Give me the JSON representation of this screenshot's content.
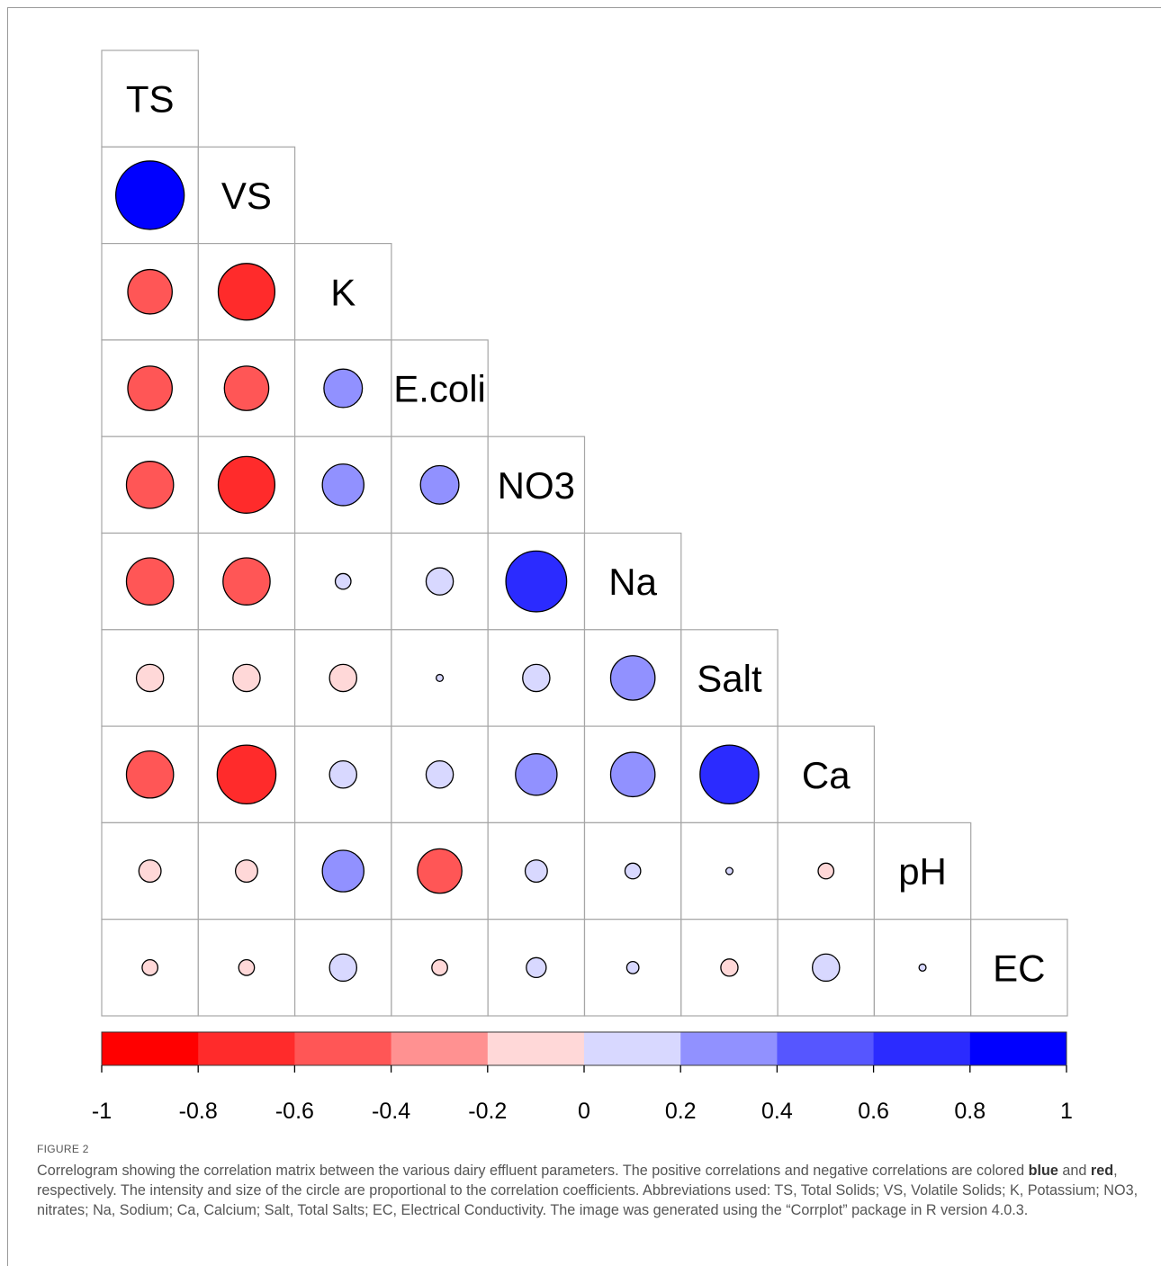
{
  "chart_data": {
    "type": "heatmap",
    "variables": [
      "TS",
      "VS",
      "K",
      "E.coli",
      "NO3",
      "Na",
      "Salt",
      "Ca",
      "pH",
      "EC"
    ],
    "layout": "lower-triangle",
    "method": "circle",
    "matrix": [
      [
        1,
        null,
        null,
        null,
        null,
        null,
        null,
        null,
        null,
        null
      ],
      [
        0.95,
        1,
        null,
        null,
        null,
        null,
        null,
        null,
        null,
        null
      ],
      [
        -0.4,
        -0.65,
        1,
        null,
        null,
        null,
        null,
        null,
        null,
        null
      ],
      [
        -0.4,
        -0.4,
        0.3,
        1,
        null,
        null,
        null,
        null,
        null,
        null
      ],
      [
        -0.45,
        -0.65,
        0.35,
        0.3,
        1,
        null,
        null,
        null,
        null,
        null
      ],
      [
        -0.45,
        -0.45,
        0.05,
        0.15,
        0.75,
        1,
        null,
        null,
        null,
        null
      ],
      [
        -0.15,
        -0.15,
        -0.15,
        0.01,
        0.15,
        0.4,
        1,
        null,
        null,
        null
      ],
      [
        -0.45,
        -0.7,
        0.15,
        0.15,
        0.35,
        0.4,
        0.7,
        1,
        null,
        null
      ],
      [
        -0.1,
        -0.1,
        0.35,
        -0.4,
        0.1,
        0.05,
        0.01,
        -0.05,
        1,
        null
      ],
      [
        -0.05,
        -0.05,
        0.15,
        -0.05,
        0.08,
        0.03,
        -0.06,
        0.15,
        0.01,
        1
      ]
    ],
    "colorbar": {
      "ticks": [
        "-1",
        "-0.8",
        "-0.6",
        "-0.4",
        "-0.2",
        "0",
        "0.2",
        "0.4",
        "0.6",
        "0.8",
        "1"
      ],
      "colors": [
        "#ff0000",
        "#ff2b2b",
        "#ff5656",
        "#ff9191",
        "#ffd8d8",
        "#d8d8ff",
        "#9191ff",
        "#5656ff",
        "#2b2bff",
        "#0000ff"
      ]
    }
  },
  "figure": {
    "label": "FIGURE 2",
    "caption_part1": "Correlogram showing the correlation matrix between the various dairy effluent parameters. The positive correlations and negative correlations are colored ",
    "caption_bold1": "blue",
    "caption_part2": " and ",
    "caption_bold2": "red",
    "caption_part3": ", respectively. The intensity and size of the circle are proportional to the correlation coefficients. Abbreviations used: TS, Total Solids; VS, Volatile Solids; K, Potassium; NO3, nitrates; Na, Sodium; Ca, Calcium; Salt, Total Salts; EC, Electrical Conductivity. The image was generated using the “Corrplot” package in R version 4.0.3."
  }
}
